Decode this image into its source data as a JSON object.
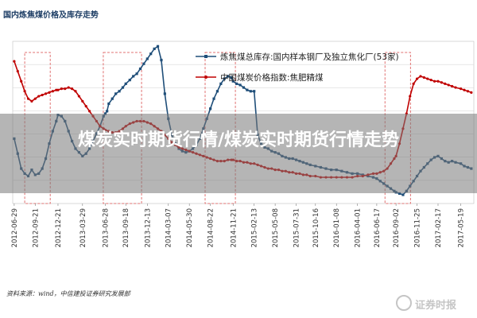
{
  "header": {
    "title": "国内炼焦煤价格及库存走势"
  },
  "banner": {
    "title": "煤炭实时期货行情/煤炭实时期货行情走势"
  },
  "source_note": "资料来源：wind，中信建投证券研究发展部",
  "watermark": {
    "text": "证券时报",
    "icon": "securities-times-logo-icon"
  },
  "colors": {
    "inventory": "#1f4e79",
    "price": "#c00000",
    "highlight_box": "#e07070"
  },
  "chart_data": {
    "type": "line",
    "title": "国内炼焦煤价格及库存走势",
    "xlabel": "",
    "ylabel": "",
    "x_ticks": [
      "2012-06-29",
      "2012-09-21",
      "2012-12-21",
      "2013-03-29",
      "2013-06-28",
      "2013-09-18",
      "2013-12-13",
      "2014-03-07",
      "2014-05-30",
      "2014-08-22",
      "2014-11-21",
      "2015-02-13",
      "2015-05-08",
      "2015-07-31",
      "2015-10-16",
      "2016-01-08",
      "2016-04-01",
      "2016-06-17",
      "2016-09-02",
      "2016-11-25",
      "2017-02-17",
      "2017-05-19"
    ],
    "legend": {
      "placement": "top-right",
      "entries": [
        "炼焦煤总库存:国内样本钢厂及独立焦化厂(53家)",
        "中国煤炭价格指数:焦肥精煤"
      ]
    },
    "highlight_periods": [
      [
        "2012-08-10",
        "2012-11-20"
      ],
      [
        "2013-06-20",
        "2013-11-20"
      ],
      [
        "2014-08-01",
        "2014-11-30"
      ],
      [
        "2016-07-20",
        "2016-10-30"
      ]
    ],
    "series": [
      {
        "name": "炼焦煤总库存:国内样本钢厂及独立焦化厂(53家)",
        "marker": "square",
        "values": [
          [
            "2012-06-29",
            0.52
          ],
          [
            "2012-07-13",
            0.4
          ],
          [
            "2012-07-27",
            0.28
          ],
          [
            "2012-08-10",
            0.24
          ],
          [
            "2012-08-24",
            0.22
          ],
          [
            "2012-09-07",
            0.27
          ],
          [
            "2012-09-21",
            0.23
          ],
          [
            "2012-10-05",
            0.24
          ],
          [
            "2012-10-19",
            0.28
          ],
          [
            "2012-11-02",
            0.36
          ],
          [
            "2012-11-16",
            0.48
          ],
          [
            "2012-11-30",
            0.58
          ],
          [
            "2012-12-14",
            0.66
          ],
          [
            "2012-12-21",
            0.71
          ],
          [
            "2013-01-04",
            0.7
          ],
          [
            "2013-01-18",
            0.66
          ],
          [
            "2013-02-01",
            0.58
          ],
          [
            "2013-02-15",
            0.5
          ],
          [
            "2013-03-01",
            0.44
          ],
          [
            "2013-03-15",
            0.41
          ],
          [
            "2013-03-29",
            0.38
          ],
          [
            "2013-04-12",
            0.4
          ],
          [
            "2013-04-26",
            0.44
          ],
          [
            "2013-05-10",
            0.5
          ],
          [
            "2013-05-24",
            0.56
          ],
          [
            "2013-06-07",
            0.62
          ],
          [
            "2013-06-21",
            0.7
          ],
          [
            "2013-06-28",
            0.72
          ],
          [
            "2013-07-05",
            0.74
          ],
          [
            "2013-07-12",
            0.8
          ],
          [
            "2013-07-26",
            0.84
          ],
          [
            "2013-08-09",
            0.88
          ],
          [
            "2013-08-23",
            0.9
          ],
          [
            "2013-09-06",
            0.93
          ],
          [
            "2013-09-18",
            0.96
          ],
          [
            "2013-10-04",
            0.99
          ],
          [
            "2013-10-18",
            1.02
          ],
          [
            "2013-11-01",
            1.04
          ],
          [
            "2013-11-15",
            1.08
          ],
          [
            "2013-11-29",
            1.12
          ],
          [
            "2013-12-13",
            1.16
          ],
          [
            "2013-12-27",
            1.2
          ],
          [
            "2014-01-10",
            1.24
          ],
          [
            "2014-01-24",
            1.26
          ],
          [
            "2014-02-07",
            1.15
          ],
          [
            "2014-02-21",
            0.88
          ],
          [
            "2014-03-07",
            0.68
          ],
          [
            "2014-03-21",
            0.55
          ],
          [
            "2014-04-04",
            0.48
          ],
          [
            "2014-04-18",
            0.44
          ],
          [
            "2014-05-02",
            0.42
          ],
          [
            "2014-05-16",
            0.41
          ],
          [
            "2014-05-30",
            0.42
          ],
          [
            "2014-06-13",
            0.44
          ],
          [
            "2014-06-27",
            0.47
          ],
          [
            "2014-07-11",
            0.52
          ],
          [
            "2014-07-25",
            0.6
          ],
          [
            "2014-08-08",
            0.68
          ],
          [
            "2014-08-22",
            0.76
          ],
          [
            "2014-09-05",
            0.84
          ],
          [
            "2014-09-19",
            0.9
          ],
          [
            "2014-10-03",
            0.96
          ],
          [
            "2014-10-17",
            1.0
          ],
          [
            "2014-10-31",
            1.02
          ],
          [
            "2014-11-14",
            1.01
          ],
          [
            "2014-11-21",
            0.98
          ],
          [
            "2014-12-05",
            0.96
          ],
          [
            "2014-12-19",
            0.95
          ],
          [
            "2015-01-02",
            0.93
          ],
          [
            "2015-01-16",
            0.91
          ],
          [
            "2015-01-30",
            0.9
          ],
          [
            "2015-02-13",
            0.9
          ],
          [
            "2015-02-27",
            0.55
          ],
          [
            "2015-03-13",
            0.48
          ],
          [
            "2015-03-27",
            0.45
          ],
          [
            "2015-04-10",
            0.44
          ],
          [
            "2015-04-24",
            0.42
          ],
          [
            "2015-05-08",
            0.41
          ],
          [
            "2015-05-22",
            0.4
          ],
          [
            "2015-06-05",
            0.38
          ],
          [
            "2015-06-19",
            0.37
          ],
          [
            "2015-07-03",
            0.36
          ],
          [
            "2015-07-17",
            0.36
          ],
          [
            "2015-07-31",
            0.35
          ],
          [
            "2015-08-14",
            0.34
          ],
          [
            "2015-08-28",
            0.33
          ],
          [
            "2015-09-11",
            0.32
          ],
          [
            "2015-09-25",
            0.31
          ],
          [
            "2015-10-16",
            0.3
          ],
          [
            "2015-11-06",
            0.29
          ],
          [
            "2015-11-27",
            0.28
          ],
          [
            "2015-12-18",
            0.27
          ],
          [
            "2016-01-08",
            0.27
          ],
          [
            "2016-01-29",
            0.26
          ],
          [
            "2016-02-19",
            0.25
          ],
          [
            "2016-03-11",
            0.24
          ],
          [
            "2016-04-01",
            0.24
          ],
          [
            "2016-04-22",
            0.23
          ],
          [
            "2016-05-13",
            0.22
          ],
          [
            "2016-06-03",
            0.21
          ],
          [
            "2016-06-17",
            0.2
          ],
          [
            "2016-07-01",
            0.18
          ],
          [
            "2016-07-15",
            0.16
          ],
          [
            "2016-07-29",
            0.14
          ],
          [
            "2016-08-12",
            0.12
          ],
          [
            "2016-08-26",
            0.1
          ],
          [
            "2016-09-02",
            0.09
          ],
          [
            "2016-09-16",
            0.08
          ],
          [
            "2016-09-30",
            0.07
          ],
          [
            "2016-10-14",
            0.1
          ],
          [
            "2016-10-28",
            0.14
          ],
          [
            "2016-11-11",
            0.18
          ],
          [
            "2016-11-25",
            0.22
          ],
          [
            "2016-12-09",
            0.26
          ],
          [
            "2016-12-23",
            0.29
          ],
          [
            "2017-01-06",
            0.32
          ],
          [
            "2017-01-20",
            0.35
          ],
          [
            "2017-02-03",
            0.37
          ],
          [
            "2017-02-17",
            0.38
          ],
          [
            "2017-03-03",
            0.36
          ],
          [
            "2017-03-17",
            0.34
          ],
          [
            "2017-03-31",
            0.33
          ],
          [
            "2017-04-14",
            0.34
          ],
          [
            "2017-04-28",
            0.33
          ],
          [
            "2017-05-19",
            0.32
          ],
          [
            "2017-06-02",
            0.3
          ],
          [
            "2017-06-16",
            0.29
          ],
          [
            "2017-06-30",
            0.28
          ]
        ]
      },
      {
        "name": "中国煤炭价格指数:焦肥精煤",
        "marker": "circle",
        "values": [
          [
            "2012-06-29",
            1.14
          ],
          [
            "2012-07-13",
            1.06
          ],
          [
            "2012-07-27",
            0.98
          ],
          [
            "2012-08-10",
            0.9
          ],
          [
            "2012-08-24",
            0.84
          ],
          [
            "2012-09-07",
            0.82
          ],
          [
            "2012-09-21",
            0.84
          ],
          [
            "2012-10-05",
            0.86
          ],
          [
            "2012-10-19",
            0.87
          ],
          [
            "2012-11-02",
            0.88
          ],
          [
            "2012-11-16",
            0.89
          ],
          [
            "2012-11-30",
            0.9
          ],
          [
            "2012-12-14",
            0.91
          ],
          [
            "2012-12-21",
            0.91
          ],
          [
            "2013-01-04",
            0.92
          ],
          [
            "2013-01-18",
            0.92
          ],
          [
            "2013-02-01",
            0.93
          ],
          [
            "2013-02-15",
            0.92
          ],
          [
            "2013-03-01",
            0.9
          ],
          [
            "2013-03-15",
            0.86
          ],
          [
            "2013-03-29",
            0.82
          ],
          [
            "2013-04-12",
            0.78
          ],
          [
            "2013-04-26",
            0.74
          ],
          [
            "2013-05-10",
            0.7
          ],
          [
            "2013-05-24",
            0.66
          ],
          [
            "2013-06-07",
            0.62
          ],
          [
            "2013-06-21",
            0.6
          ],
          [
            "2013-06-28",
            0.59
          ],
          [
            "2013-07-12",
            0.58
          ],
          [
            "2013-07-26",
            0.57
          ],
          [
            "2013-08-09",
            0.57
          ],
          [
            "2013-08-23",
            0.58
          ],
          [
            "2013-09-06",
            0.6
          ],
          [
            "2013-09-18",
            0.62
          ],
          [
            "2013-10-04",
            0.64
          ],
          [
            "2013-10-18",
            0.65
          ],
          [
            "2013-11-01",
            0.66
          ],
          [
            "2013-11-15",
            0.66
          ],
          [
            "2013-11-29",
            0.66
          ],
          [
            "2013-12-13",
            0.65
          ],
          [
            "2013-12-27",
            0.64
          ],
          [
            "2014-01-10",
            0.62
          ],
          [
            "2014-01-24",
            0.6
          ],
          [
            "2014-02-07",
            0.58
          ],
          [
            "2014-02-21",
            0.55
          ],
          [
            "2014-03-07",
            0.52
          ],
          [
            "2014-03-21",
            0.49
          ],
          [
            "2014-04-04",
            0.47
          ],
          [
            "2014-04-18",
            0.45
          ],
          [
            "2014-05-02",
            0.44
          ],
          [
            "2014-05-16",
            0.43
          ],
          [
            "2014-05-30",
            0.42
          ],
          [
            "2014-06-13",
            0.41
          ],
          [
            "2014-06-27",
            0.4
          ],
          [
            "2014-07-11",
            0.39
          ],
          [
            "2014-07-25",
            0.38
          ],
          [
            "2014-08-08",
            0.37
          ],
          [
            "2014-08-22",
            0.36
          ],
          [
            "2014-09-05",
            0.35
          ],
          [
            "2014-09-19",
            0.34
          ],
          [
            "2014-10-03",
            0.34
          ],
          [
            "2014-10-17",
            0.34
          ],
          [
            "2014-10-31",
            0.35
          ],
          [
            "2014-11-14",
            0.35
          ],
          [
            "2014-11-21",
            0.35
          ],
          [
            "2014-12-05",
            0.34
          ],
          [
            "2014-12-19",
            0.34
          ],
          [
            "2015-01-02",
            0.33
          ],
          [
            "2015-01-16",
            0.33
          ],
          [
            "2015-01-30",
            0.32
          ],
          [
            "2015-02-13",
            0.32
          ],
          [
            "2015-02-27",
            0.31
          ],
          [
            "2015-03-13",
            0.3
          ],
          [
            "2015-03-27",
            0.29
          ],
          [
            "2015-04-10",
            0.28
          ],
          [
            "2015-04-24",
            0.28
          ],
          [
            "2015-05-08",
            0.27
          ],
          [
            "2015-05-22",
            0.27
          ],
          [
            "2015-06-05",
            0.26
          ],
          [
            "2015-06-19",
            0.26
          ],
          [
            "2015-07-03",
            0.25
          ],
          [
            "2015-07-17",
            0.25
          ],
          [
            "2015-07-31",
            0.24
          ],
          [
            "2015-08-14",
            0.24
          ],
          [
            "2015-08-28",
            0.23
          ],
          [
            "2015-09-11",
            0.23
          ],
          [
            "2015-09-25",
            0.22
          ],
          [
            "2015-10-16",
            0.22
          ],
          [
            "2015-11-06",
            0.21
          ],
          [
            "2015-11-27",
            0.21
          ],
          [
            "2015-12-18",
            0.21
          ],
          [
            "2016-01-08",
            0.21
          ],
          [
            "2016-01-29",
            0.21
          ],
          [
            "2016-02-19",
            0.21
          ],
          [
            "2016-03-11",
            0.21
          ],
          [
            "2016-04-01",
            0.22
          ],
          [
            "2016-04-22",
            0.22
          ],
          [
            "2016-05-13",
            0.23
          ],
          [
            "2016-06-03",
            0.24
          ],
          [
            "2016-06-17",
            0.24
          ],
          [
            "2016-07-01",
            0.25
          ],
          [
            "2016-07-15",
            0.26
          ],
          [
            "2016-07-29",
            0.28
          ],
          [
            "2016-08-12",
            0.32
          ],
          [
            "2016-08-26",
            0.36
          ],
          [
            "2016-09-02",
            0.38
          ],
          [
            "2016-09-16",
            0.48
          ],
          [
            "2016-09-30",
            0.6
          ],
          [
            "2016-10-14",
            0.72
          ],
          [
            "2016-10-28",
            0.86
          ],
          [
            "2016-11-11",
            0.96
          ],
          [
            "2016-11-25",
            1.0
          ],
          [
            "2016-12-09",
            1.02
          ],
          [
            "2016-12-23",
            1.01
          ],
          [
            "2017-01-06",
            1.0
          ],
          [
            "2017-01-20",
            0.99
          ],
          [
            "2017-02-03",
            0.98
          ],
          [
            "2017-02-17",
            0.98
          ],
          [
            "2017-03-03",
            0.97
          ],
          [
            "2017-03-17",
            0.96
          ],
          [
            "2017-03-31",
            0.95
          ],
          [
            "2017-04-14",
            0.94
          ],
          [
            "2017-04-28",
            0.93
          ],
          [
            "2017-05-19",
            0.92
          ],
          [
            "2017-06-02",
            0.91
          ],
          [
            "2017-06-16",
            0.9
          ],
          [
            "2017-06-30",
            0.89
          ]
        ]
      }
    ]
  }
}
